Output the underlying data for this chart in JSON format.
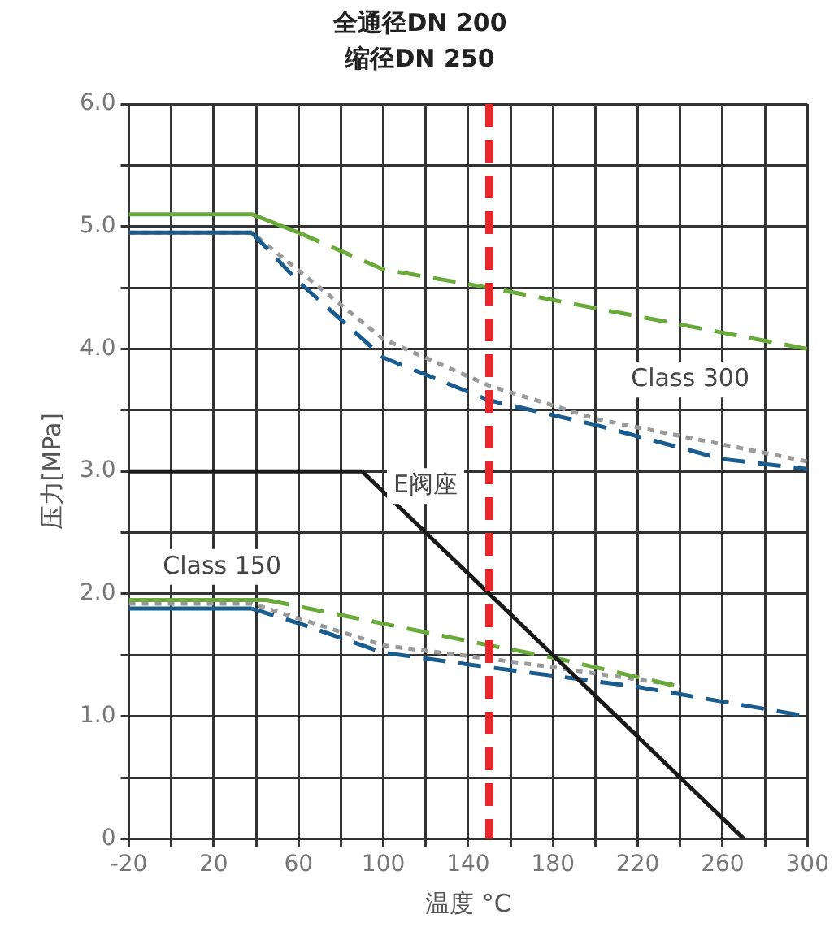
{
  "chart_data": {
    "type": "line",
    "title": "全通径DN 200",
    "subtitle": "缩径DN 250",
    "xlabel": "温度 °C",
    "ylabel": "压力[MPa]",
    "xlim": [
      -20,
      300
    ],
    "xticks": [
      -20,
      {
        "value": 0,
        "label": null
      },
      20,
      {
        "value": 40,
        "label": null
      },
      60,
      {
        "value": 80,
        "label": null
      },
      100,
      {
        "value": 120,
        "label": null
      },
      140,
      {
        "value": 160,
        "label": null
      },
      180,
      {
        "value": 200,
        "label": null
      },
      220,
      {
        "value": 240,
        "label": null
      },
      260,
      {
        "value": 280,
        "label": null
      },
      300
    ],
    "ylim": [
      0,
      6
    ],
    "yticks": [
      0,
      {
        "value": 0.5,
        "label": null
      },
      {
        "value": 1,
        "label": "1.0"
      },
      {
        "value": 1.5,
        "label": null
      },
      {
        "value": 2,
        "label": "2.0"
      },
      {
        "value": 2.5,
        "label": null
      },
      {
        "value": 3,
        "label": "3.0"
      },
      {
        "value": 3.5,
        "label": null
      },
      {
        "value": 4,
        "label": "4.0"
      },
      {
        "value": 4.5,
        "label": null
      },
      {
        "value": 5,
        "label": "5.0"
      },
      {
        "value": 5.5,
        "label": null
      },
      {
        "value": 6,
        "label": "6.0"
      }
    ],
    "grid": true,
    "legend": false,
    "series": [
      {
        "color": "#6aaa3a",
        "line_style": "solid",
        "x": [
          -20,
          38,
          60
        ],
        "values": [
          5.1,
          5.1,
          4.95
        ]
      },
      {
        "color": "#6aaa3a",
        "line_style": "dashed",
        "x": [
          60,
          100,
          150,
          300
        ],
        "values": [
          4.95,
          4.65,
          4.5,
          4.0
        ]
      },
      {
        "color": "#1a5c8e",
        "line_style": "solid",
        "x": [
          -20,
          38
        ],
        "values": [
          4.95,
          4.95
        ]
      },
      {
        "color": "#1a5c8e",
        "line_style": "dashed",
        "x": [
          38,
          60,
          100,
          150,
          200,
          260,
          300
        ],
        "values": [
          4.95,
          4.55,
          3.93,
          3.58,
          3.38,
          3.1,
          3.02
        ]
      },
      {
        "color": "#9a9a9a",
        "line_style": "dotted",
        "x": [
          -20,
          38,
          100,
          150,
          200,
          300
        ],
        "values": [
          4.95,
          4.95,
          4.08,
          3.7,
          3.43,
          3.08
        ]
      },
      {
        "color": "#1a1a1a",
        "line_style": "solid",
        "x": [
          -20,
          90,
          270
        ],
        "values": [
          3.0,
          3.0,
          0
        ]
      },
      {
        "color": "#6aaa3a",
        "line_style": "solid",
        "x": [
          -20,
          45
        ],
        "values": [
          1.95,
          1.95
        ]
      },
      {
        "color": "#6aaa3a",
        "line_style": "dashed",
        "x": [
          45,
          150,
          180,
          240
        ],
        "values": [
          1.95,
          1.58,
          1.48,
          1.24
        ]
      },
      {
        "color": "#1a5c8e",
        "line_style": "solid",
        "x": [
          -20,
          38
        ],
        "values": [
          1.88,
          1.88
        ]
      },
      {
        "color": "#1a5c8e",
        "line_style": "dashed",
        "x": [
          38,
          60,
          100,
          150,
          220,
          300
        ],
        "values": [
          1.88,
          1.76,
          1.52,
          1.4,
          1.24,
          1.0
        ]
      },
      {
        "color": "#9a9a9a",
        "line_style": "dotted",
        "x": [
          -20,
          38,
          100,
          150,
          180,
          240
        ],
        "values": [
          1.92,
          1.92,
          1.58,
          1.47,
          1.4,
          1.25
        ]
      }
    ],
    "ref_lines": [
      {
        "axis": "x",
        "value": 150,
        "color": "#e8262b",
        "line_style": "dashed"
      }
    ],
    "annotations": [
      "Class 300",
      "Class 150",
      "E阀座"
    ]
  }
}
